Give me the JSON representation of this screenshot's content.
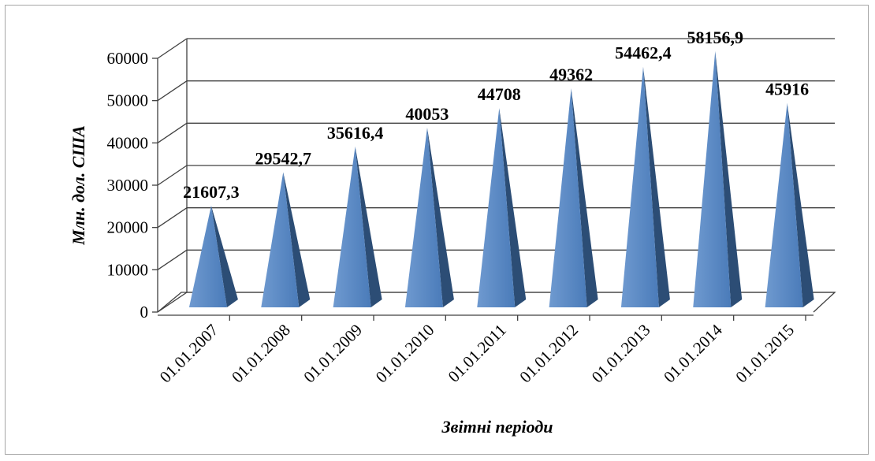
{
  "chart_data": {
    "type": "bar",
    "bar_shape": "pyramid",
    "categories": [
      "01.01.2007",
      "01.01.2008",
      "01.01.2009",
      "01.01.2010",
      "01.01.2011",
      "01.01.2012",
      "01.01.2013",
      "01.01.2014",
      "01.01.2015"
    ],
    "values": [
      21607.3,
      29542.7,
      35616.4,
      40053,
      44708,
      49362,
      54462.4,
      58156.9,
      45916
    ],
    "data_labels": [
      "21607,3",
      "29542,7",
      "35616,4",
      "40053",
      "44708",
      "49362",
      "54462,4",
      "58156,9",
      "45916"
    ],
    "xlabel": "Звітні періоди",
    "ylabel": "Млн. дол. США",
    "ylim": [
      0,
      60000
    ],
    "yticks": [
      "0",
      "10000",
      "20000",
      "30000",
      "40000",
      "50000",
      "60000"
    ],
    "grid": true,
    "legend": "none",
    "colors": {
      "bar_front": "#4f81bd",
      "bar_side": "#2c4d75",
      "grid": "#404040"
    }
  }
}
